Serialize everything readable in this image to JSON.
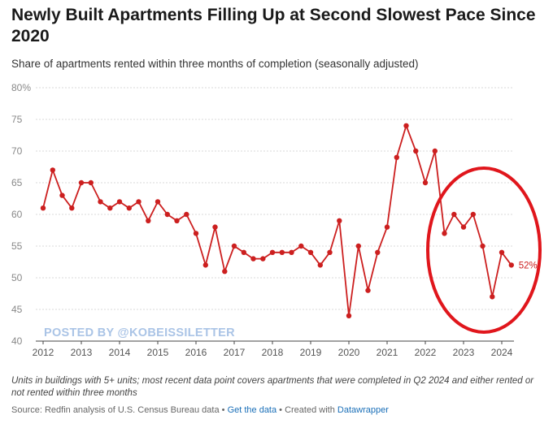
{
  "title": "Newly Built Apartments Filling Up at Second Slowest Pace Since 2020",
  "subtitle": "Share of apartments rented within three months of completion (seasonally adjusted)",
  "watermark": "POSTED BY @KOBEISSILETTER",
  "notes": "Units in buildings with 5+ units; most recent data point covers apartments that were completed in Q2 2024 and either rented or not rented within three months",
  "source": {
    "prefix": "Source: Redfin analysis of U.S. Census Bureau data",
    "sep1": " • ",
    "get_data": "Get the data",
    "sep2": " • Created with ",
    "datawrapper": "Datawrapper"
  },
  "colors": {
    "line": "#cc1f1f",
    "circle": "#e0161c",
    "grid": "#cccccc",
    "axis_text": "#888888",
    "watermark": "#aac4e6"
  },
  "chart_data": {
    "type": "line",
    "y_ticks": [
      "40",
      "45",
      "50",
      "55",
      "60",
      "65",
      "70",
      "75",
      "80%"
    ],
    "x_ticks": [
      "2012",
      "2013",
      "2014",
      "2015",
      "2016",
      "2017",
      "2018",
      "2019",
      "2020",
      "2021",
      "2022",
      "2023",
      "2024"
    ],
    "ylim": [
      40,
      80
    ],
    "xlim": [
      "2012 Q1",
      "2024 Q2"
    ],
    "grid": true,
    "end_label": "52%",
    "series": [
      {
        "x": [
          "2012 Q1",
          "2012 Q2",
          "2012 Q3",
          "2012 Q4",
          "2013 Q1",
          "2013 Q2",
          "2013 Q3",
          "2013 Q4",
          "2014 Q1",
          "2014 Q2",
          "2014 Q3",
          "2014 Q4",
          "2015 Q1",
          "2015 Q2",
          "2015 Q3",
          "2015 Q4",
          "2016 Q1",
          "2016 Q2",
          "2016 Q3",
          "2016 Q4",
          "2017 Q1",
          "2017 Q2",
          "2017 Q3",
          "2017 Q4",
          "2018 Q1",
          "2018 Q2",
          "2018 Q3",
          "2018 Q4",
          "2019 Q1",
          "2019 Q2",
          "2019 Q3",
          "2019 Q4",
          "2020 Q1",
          "2020 Q2",
          "2020 Q3",
          "2020 Q4",
          "2021 Q1",
          "2021 Q2",
          "2021 Q3",
          "2021 Q4",
          "2022 Q1",
          "2022 Q2",
          "2022 Q3",
          "2022 Q4",
          "2023 Q1",
          "2023 Q2",
          "2023 Q3",
          "2023 Q4",
          "2024 Q1",
          "2024 Q2"
        ],
        "values": [
          61,
          67,
          63,
          61,
          65,
          65,
          62,
          61,
          62,
          61,
          62,
          59,
          62,
          60,
          59,
          60,
          57,
          52,
          58,
          51,
          55,
          54,
          53,
          53,
          54,
          54,
          54,
          55,
          54,
          52,
          54,
          59,
          44,
          55,
          48,
          54,
          58,
          69,
          74,
          70,
          65,
          70,
          57,
          60,
          58,
          60,
          55,
          47,
          54,
          52
        ]
      }
    ],
    "annotations": [
      "red circle highlighting 2022-2024 decline"
    ]
  }
}
